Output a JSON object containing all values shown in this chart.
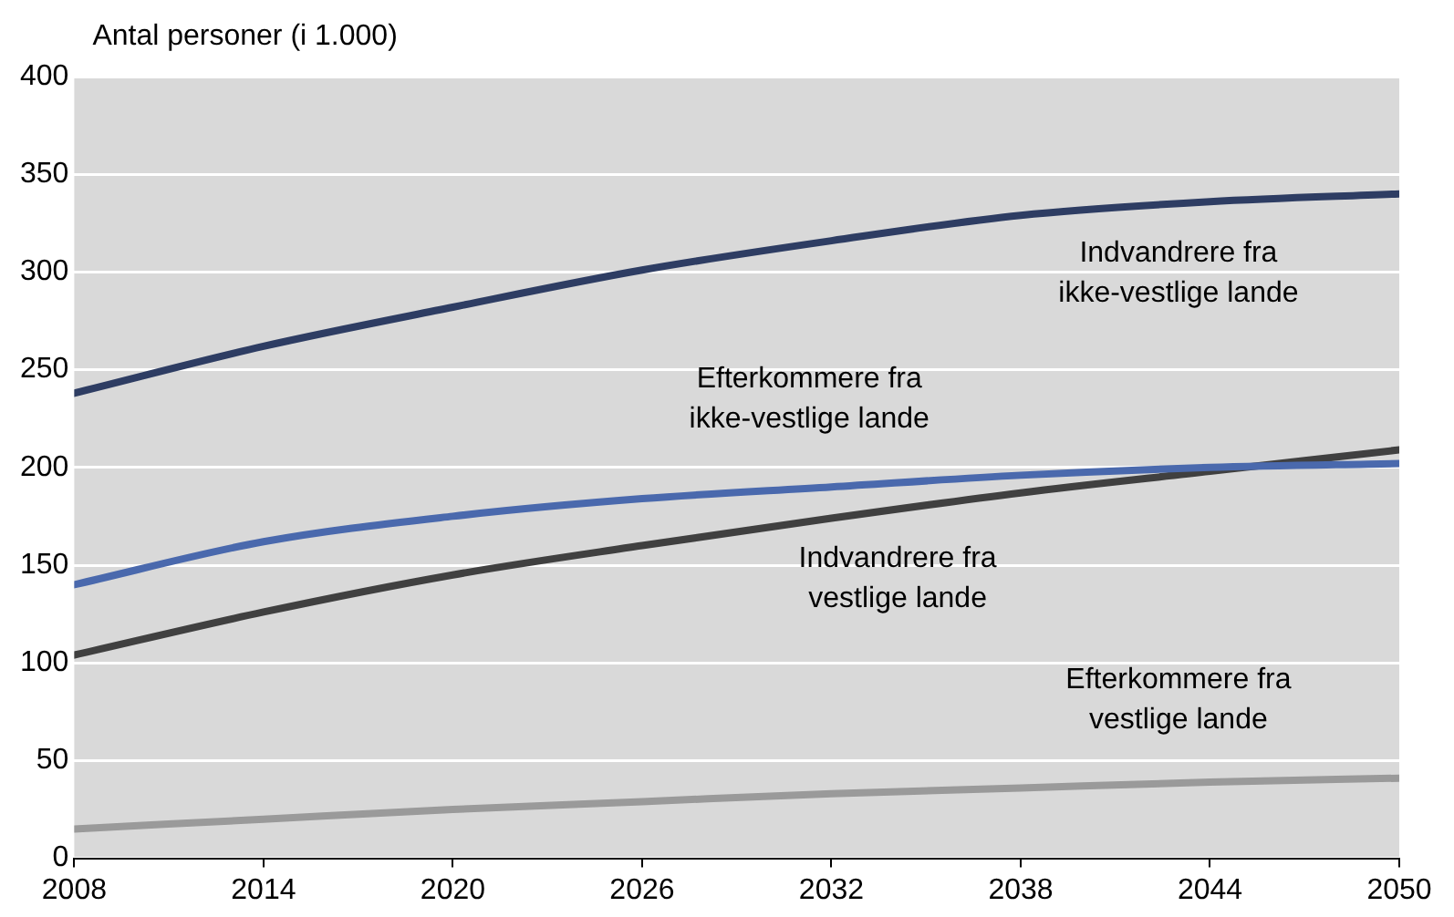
{
  "chart_data": {
    "type": "line",
    "ylabel": "Antal personer (i 1.000)",
    "x": [
      2008,
      2014,
      2020,
      2026,
      2032,
      2038,
      2044,
      2050
    ],
    "xlim": [
      2008,
      2050
    ],
    "xticks": [
      2008,
      2014,
      2020,
      2026,
      2032,
      2038,
      2044,
      2050
    ],
    "ylim": [
      0,
      400
    ],
    "yticks": [
      0,
      50,
      100,
      150,
      200,
      250,
      300,
      350,
      400
    ],
    "grid": "y",
    "legend": false,
    "marker": "none",
    "line_style": "solid",
    "series": [
      {
        "name": "Indvandrere fra ikke-vestlige lande",
        "color": "#2e3d63",
        "values": [
          238,
          262,
          282,
          301,
          316,
          329,
          336,
          340
        ]
      },
      {
        "name": "Efterkommere fra ikke-vestlige lande",
        "color": "#4a69ad",
        "values": [
          140,
          162,
          175,
          184,
          190,
          196,
          200,
          202
        ]
      },
      {
        "name": "Indvandrere fra vestlige lande",
        "color": "#404040",
        "values": [
          104,
          126,
          145,
          160,
          174,
          187,
          198,
          209
        ]
      },
      {
        "name": "Efterkommere fra vestlige lande",
        "color": "#9a9a9a",
        "values": [
          15,
          20,
          25,
          29,
          33,
          36,
          39,
          41
        ]
      }
    ]
  }
}
